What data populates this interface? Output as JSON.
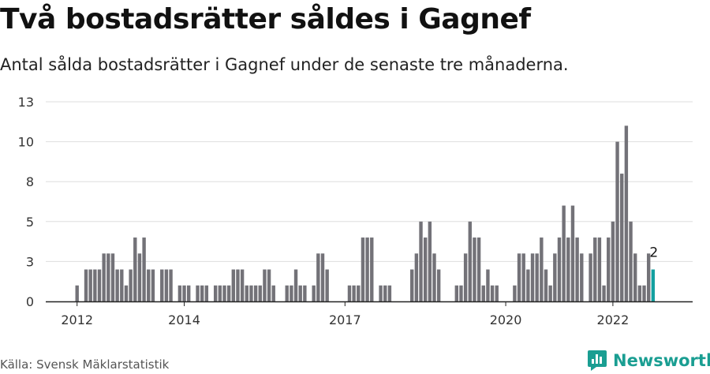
{
  "title": "Två bostadsrätter såldes i Gagnef",
  "subtitle": "Antal sålda bostadsrätter i Gagnef under de senaste tre månaderna.",
  "source": "Källa: Svensk Mäklarstatistik",
  "logo_text": "Newsworthy",
  "colors": {
    "bar": "#737278",
    "highlight": "#13a0a0",
    "grid": "#dedede",
    "axis": "#222222",
    "logo": "#1a9e92"
  },
  "chart_data": {
    "type": "bar",
    "title": "Två bostadsrätter såldes i Gagnef",
    "subtitle": "Antal sålda bostadsrätter i Gagnef under de senaste tre månaderna.",
    "xlabel": "",
    "ylabel": "",
    "ylim": [
      0,
      12.5
    ],
    "y_ticks": [
      {
        "value": 0,
        "label": "0"
      },
      {
        "value": 2.5,
        "label": "3"
      },
      {
        "value": 5,
        "label": "5"
      },
      {
        "value": 7.5,
        "label": "8"
      },
      {
        "value": 10,
        "label": "10"
      },
      {
        "value": 12.5,
        "label": "13"
      }
    ],
    "x_ticks": [
      {
        "year": 2012,
        "month": 1,
        "label": "2012"
      },
      {
        "year": 2014,
        "month": 1,
        "label": "2014"
      },
      {
        "year": 2017,
        "month": 1,
        "label": "2017"
      },
      {
        "year": 2020,
        "month": 1,
        "label": "2020"
      },
      {
        "year": 2022,
        "month": 1,
        "label": "2022"
      }
    ],
    "grid": true,
    "legend": "none",
    "start": {
      "year": 2012,
      "month": 1
    },
    "values": [
      1,
      0,
      2,
      2,
      2,
      2,
      3,
      3,
      3,
      2,
      2,
      1,
      2,
      4,
      3,
      4,
      2,
      2,
      0,
      2,
      2,
      2,
      0,
      1,
      1,
      1,
      0,
      1,
      1,
      1,
      0,
      1,
      1,
      1,
      1,
      2,
      2,
      2,
      1,
      1,
      1,
      1,
      2,
      2,
      1,
      0,
      0,
      1,
      1,
      2,
      1,
      1,
      0,
      1,
      3,
      3,
      2,
      0,
      0,
      0,
      0,
      1,
      1,
      1,
      4,
      4,
      4,
      0,
      1,
      1,
      1,
      0,
      0,
      0,
      0,
      2,
      3,
      5,
      4,
      5,
      3,
      2,
      0,
      0,
      0,
      1,
      1,
      3,
      5,
      4,
      4,
      1,
      2,
      1,
      1,
      0,
      0,
      0,
      1,
      3,
      3,
      2,
      3,
      3,
      4,
      2,
      1,
      3,
      4,
      6,
      4,
      6,
      4,
      3,
      0,
      3,
      4,
      4,
      1,
      4,
      5,
      10,
      8,
      11,
      5,
      3,
      1,
      1,
      3,
      2
    ],
    "highlight_last": true,
    "annotation": {
      "text": "2",
      "target": "last"
    }
  }
}
